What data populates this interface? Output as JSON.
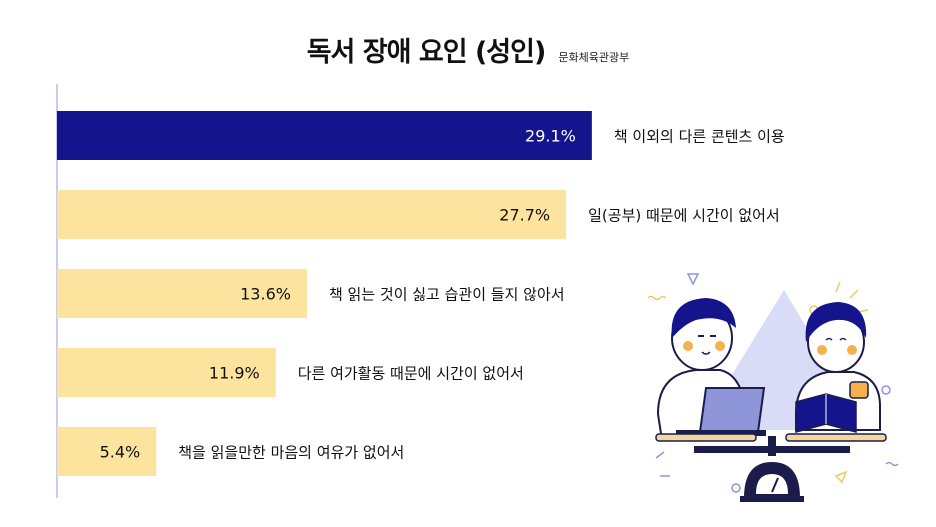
{
  "chart_data": {
    "type": "bar",
    "orientation": "horizontal",
    "title": "독서 장애 요인 (성인)",
    "source": "문화체육관광부",
    "categories": [
      "책 이외의 다른 콘텐츠 이용",
      "일(공부) 때문에 시간이 없어서",
      "책 읽는 것이 싫고 습관이 들지 않아서",
      "다른 여가활동 때문에 시간이 없어서",
      "책을 읽을만한 마음의 여유가 없어서"
    ],
    "values": [
      29.1,
      27.7,
      13.6,
      11.9,
      5.4
    ],
    "value_labels": [
      "29.1%",
      "27.7%",
      "13.6%",
      "11.9%",
      "5.4%"
    ],
    "unit": "%",
    "xlim": [
      0,
      33
    ],
    "grid": false,
    "colors": {
      "highlight": "#14148c",
      "bar": "#fde49e",
      "axis": "#c9cbe8",
      "highlight_label": "#ffffff",
      "label": "#111111"
    }
  }
}
